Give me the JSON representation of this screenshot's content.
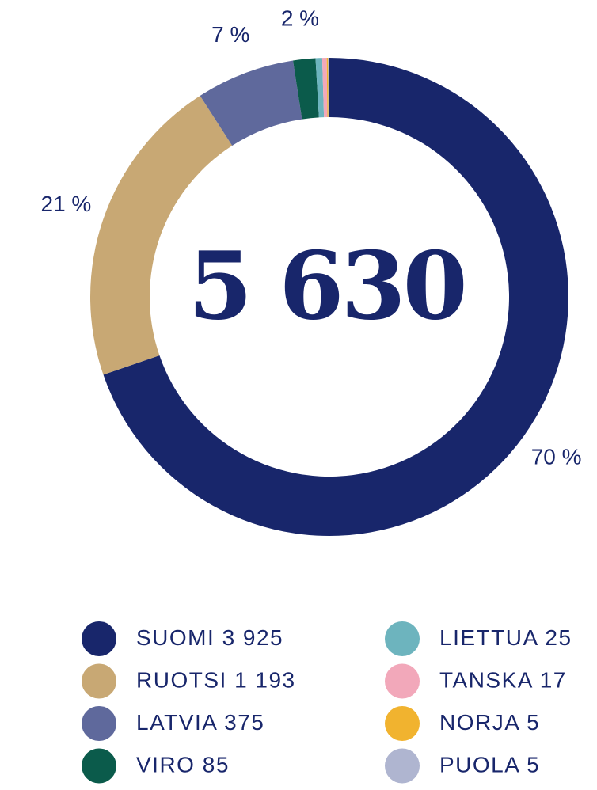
{
  "chart_data": {
    "type": "donut",
    "center_text": "5 630",
    "categories": [
      "SUOMI",
      "RUOTSI",
      "LATVIA",
      "VIRO",
      "LIETTUA",
      "TANSKA",
      "NORJA",
      "PUOLA"
    ],
    "values": [
      3925,
      1193,
      375,
      85,
      25,
      17,
      5,
      5
    ],
    "value_labels": [
      "3 925",
      "1 193",
      "375",
      "85",
      "25",
      "17",
      "5",
      "5"
    ],
    "colors": [
      "#18266b",
      "#c8a874",
      "#5f699c",
      "#0b5b4b",
      "#6db4be",
      "#f2a8ba",
      "#f1b32f",
      "#afb5d0"
    ],
    "percent_labels": [
      "70 %",
      "21 %",
      "7 %",
      "2 %"
    ]
  }
}
